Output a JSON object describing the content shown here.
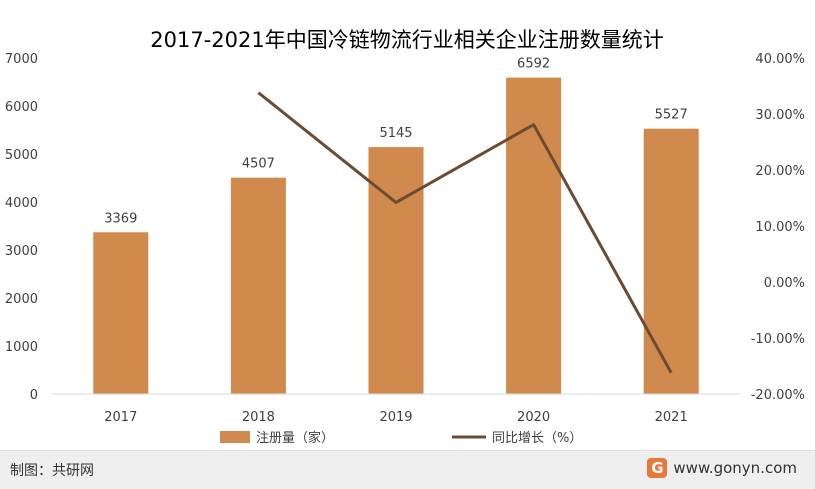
{
  "chart_data": {
    "type": "bar",
    "title": "2017-2021年中国冷链物流行业相关企业注册数量统计",
    "categories": [
      "2017",
      "2018",
      "2019",
      "2020",
      "2021"
    ],
    "series": [
      {
        "name": "注册量（家）",
        "type": "bar",
        "axis": "left",
        "values": [
          3369,
          4507,
          5145,
          6592,
          5527
        ],
        "color": "#d18a4d"
      },
      {
        "name": "同比增长（%）",
        "type": "line",
        "axis": "right",
        "values": [
          null,
          33.8,
          14.2,
          28.1,
          -16.2
        ],
        "color": "#6b4c33"
      }
    ],
    "y_left": {
      "min": 0,
      "max": 7000,
      "ticks": [
        "0",
        "1000",
        "2000",
        "3000",
        "4000",
        "5000",
        "6000",
        "7000"
      ]
    },
    "y_right": {
      "min": -20,
      "max": 40,
      "ticks": [
        "-20.00%",
        "-10.00%",
        "0.00%",
        "10.00%",
        "20.00%",
        "30.00%",
        "40.00%"
      ]
    },
    "data_labels": [
      "3369",
      "4507",
      "5145",
      "6592",
      "5527"
    ],
    "grid": false,
    "legend_position": "bottom"
  },
  "footer": {
    "credit": "制图：共研网",
    "site": "www.gonyn.com",
    "logo_glyph": "G"
  }
}
